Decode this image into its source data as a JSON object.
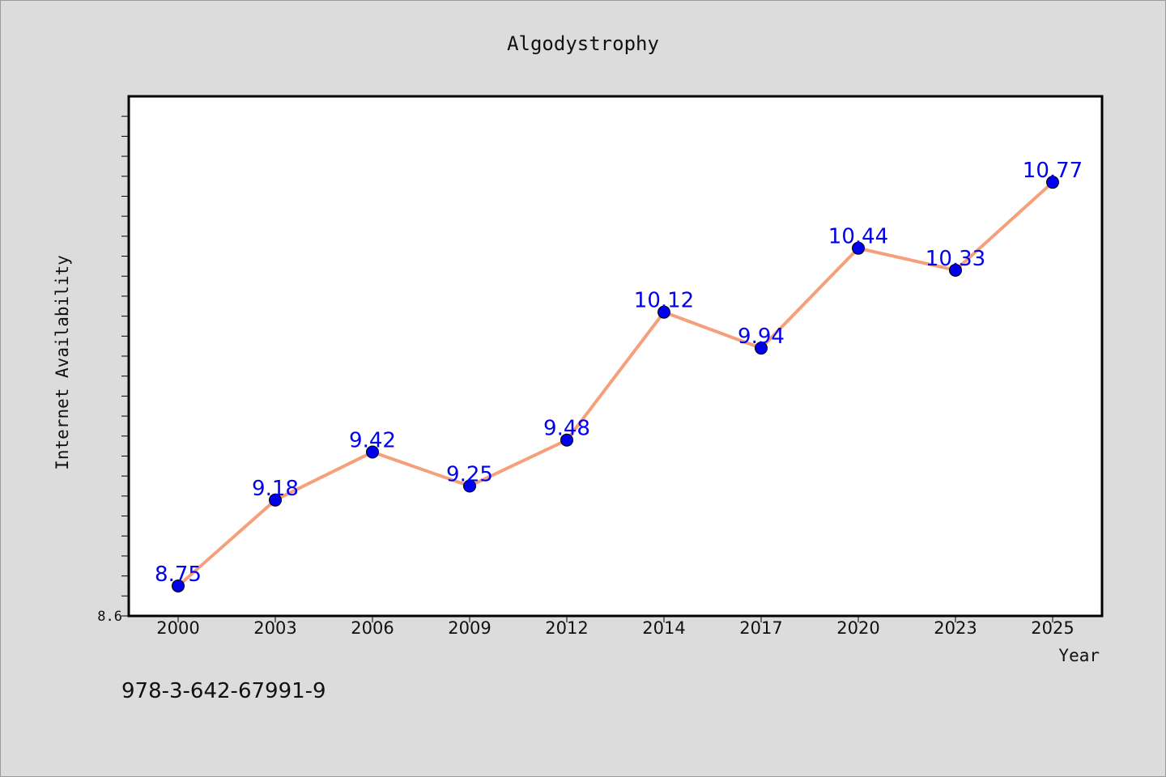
{
  "caption": "978-3-642-67991-9",
  "colors": {
    "background": "#dcdcdc",
    "plot_area": "#ffffff",
    "line": "#f5a07a",
    "marker": "#0000ee",
    "data_label": "#0000ee"
  },
  "chart_data": {
    "type": "line",
    "title": "Algodystrophy",
    "xlabel": "Year",
    "ylabel": "Internet Availability",
    "categories": [
      "2000",
      "2003",
      "2006",
      "2009",
      "2012",
      "2014",
      "2017",
      "2020",
      "2023",
      "2025"
    ],
    "series": [
      {
        "values": [
          8.75,
          9.18,
          9.42,
          9.25,
          9.48,
          10.12,
          9.94,
          10.44,
          10.33,
          10.77
        ]
      }
    ],
    "data_labels": [
      "8.75",
      "9.18",
      "9.42",
      "9.25",
      "9.48",
      "10.12",
      "9.94",
      "10.44",
      "10.33",
      "10.77"
    ],
    "ylim": [
      8.6,
      11.2
    ],
    "yticks_labeled": [
      "8.6"
    ],
    "grid": false,
    "legend": "none"
  }
}
